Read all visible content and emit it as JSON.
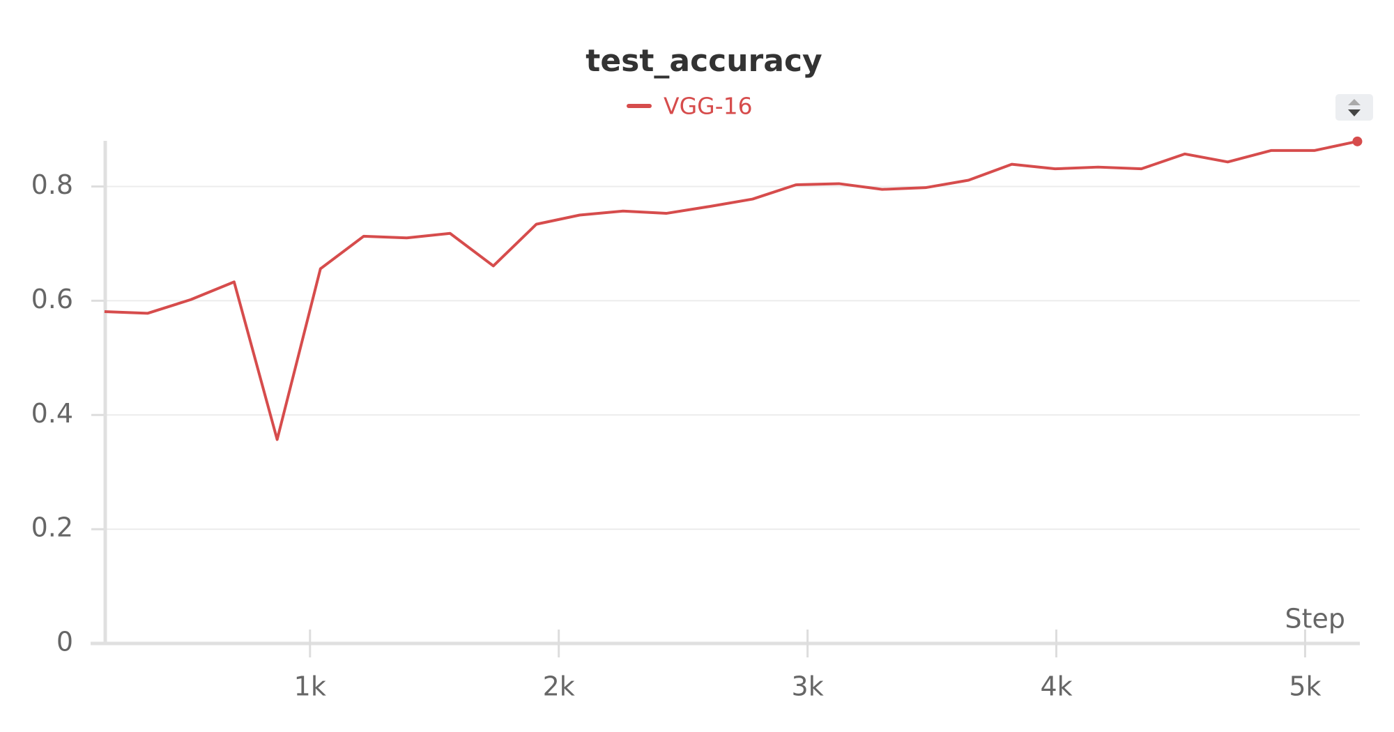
{
  "chart_data": {
    "type": "line",
    "title": "test_accuracy",
    "x_label": "Step",
    "x": [
      174,
      347,
      521,
      695,
      868,
      1042,
      1216,
      1389,
      1563,
      1737,
      1910,
      2084,
      2258,
      2432,
      2605,
      2779,
      2953,
      3126,
      3300,
      3474,
      3647,
      3821,
      3995,
      4168,
      4342,
      4516,
      4689,
      4863,
      5037,
      5210
    ],
    "series": [
      {
        "name": "VGG-16",
        "color": "#d64c4c",
        "values": [
          0.581,
          0.578,
          0.602,
          0.633,
          0.357,
          0.656,
          0.713,
          0.71,
          0.718,
          0.661,
          0.734,
          0.75,
          0.757,
          0.753,
          0.765,
          0.778,
          0.803,
          0.805,
          0.795,
          0.798,
          0.811,
          0.839,
          0.831,
          0.834,
          0.831,
          0.857,
          0.843,
          0.863,
          0.863,
          0.879
        ]
      }
    ],
    "xlim": [
      177,
      5220
    ],
    "ylim": [
      0,
      0.88
    ],
    "xticks": [
      {
        "value": 1000,
        "label": "1k"
      },
      {
        "value": 2000,
        "label": "2k"
      },
      {
        "value": 3000,
        "label": "3k"
      },
      {
        "value": 4000,
        "label": "4k"
      },
      {
        "value": 5000,
        "label": "5k"
      }
    ],
    "yticks": [
      0,
      0.2,
      0.4,
      0.6,
      0.8
    ],
    "grid": true
  }
}
